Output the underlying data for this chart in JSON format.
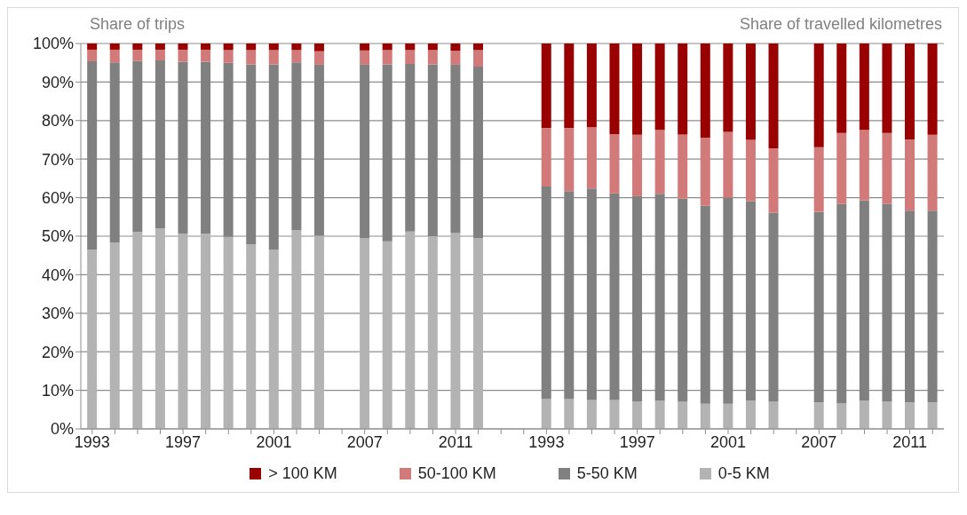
{
  "chart_data": {
    "type": "bar",
    "stacked": true,
    "annotations": [
      "Share of trips",
      "Share of travelled kilometres"
    ],
    "categories": [
      "1993",
      null,
      null,
      null,
      "1997",
      null,
      null,
      null,
      "2001",
      null,
      null,
      null,
      "2007",
      null,
      null,
      null,
      "2011",
      null,
      null,
      null,
      "1993",
      null,
      null,
      null,
      "1997",
      null,
      null,
      null,
      "2001",
      null,
      null,
      null,
      "2007",
      null,
      null,
      null,
      "2011",
      null
    ],
    "series": [
      {
        "name": "0-5 KM",
        "color": "#b3b3b3",
        "values": [
          46.5,
          48.4,
          51.1,
          52.0,
          50.7,
          50.7,
          49.8,
          47.9,
          46.5,
          51.6,
          50.1,
          null,
          49.5,
          48.7,
          51.2,
          50.0,
          50.8,
          49.5,
          null,
          null,
          7.7,
          7.7,
          7.5,
          7.5,
          7.1,
          7.4,
          7.1,
          6.5,
          6.5,
          7.4,
          7.0,
          null,
          6.9,
          6.7,
          7.4,
          7.0,
          6.9,
          6.9
        ]
      },
      {
        "name": "5-50 KM",
        "color": "#808080",
        "values": [
          48.9,
          46.7,
          44.4,
          43.6,
          44.6,
          44.6,
          45.2,
          46.7,
          48.1,
          43.5,
          44.4,
          null,
          45.0,
          45.9,
          43.5,
          44.6,
          43.7,
          44.5,
          null,
          null,
          55.2,
          54.0,
          54.9,
          53.6,
          53.3,
          53.6,
          52.7,
          51.4,
          53.5,
          51.7,
          49.1,
          null,
          49.4,
          51.7,
          51.9,
          51.4,
          49.7,
          49.7
        ]
      },
      {
        "name": "50-100 KM",
        "color": "#d27a7a",
        "values": [
          3.0,
          3.3,
          2.9,
          2.8,
          3.1,
          3.1,
          3.3,
          3.7,
          3.7,
          3.2,
          3.5,
          null,
          3.7,
          3.7,
          3.6,
          3.7,
          3.6,
          4.3,
          null,
          null,
          15.2,
          16.4,
          15.9,
          15.4,
          15.9,
          16.6,
          16.6,
          17.6,
          17.1,
          15.9,
          16.7,
          null,
          16.8,
          18.4,
          18.3,
          18.4,
          18.5,
          19.7
        ]
      },
      {
        "name": "> 100 KM",
        "color": "#990000",
        "values": [
          1.6,
          1.6,
          1.6,
          1.6,
          1.6,
          1.6,
          1.7,
          1.7,
          1.7,
          1.7,
          2.0,
          null,
          1.8,
          1.7,
          1.7,
          1.7,
          1.9,
          1.7,
          null,
          null,
          21.9,
          21.9,
          21.7,
          23.5,
          23.7,
          22.4,
          23.6,
          24.5,
          22.9,
          25.0,
          27.2,
          null,
          26.9,
          23.2,
          22.4,
          23.2,
          24.9,
          23.7
        ]
      }
    ],
    "ylim": [
      0,
      100
    ],
    "yticks": [
      {
        "value": 0,
        "label": "0%"
      },
      {
        "value": 10,
        "label": "10%"
      },
      {
        "value": 20,
        "label": "20%"
      },
      {
        "value": 30,
        "label": "30%"
      },
      {
        "value": 40,
        "label": "40%"
      },
      {
        "value": 50,
        "label": "50%"
      },
      {
        "value": 60,
        "label": "60%"
      },
      {
        "value": 70,
        "label": "70%"
      },
      {
        "value": 80,
        "label": "80%"
      },
      {
        "value": 90,
        "label": "90%"
      },
      {
        "value": 100,
        "label": "100%"
      }
    ],
    "grid": "y",
    "legend": "bottom"
  }
}
